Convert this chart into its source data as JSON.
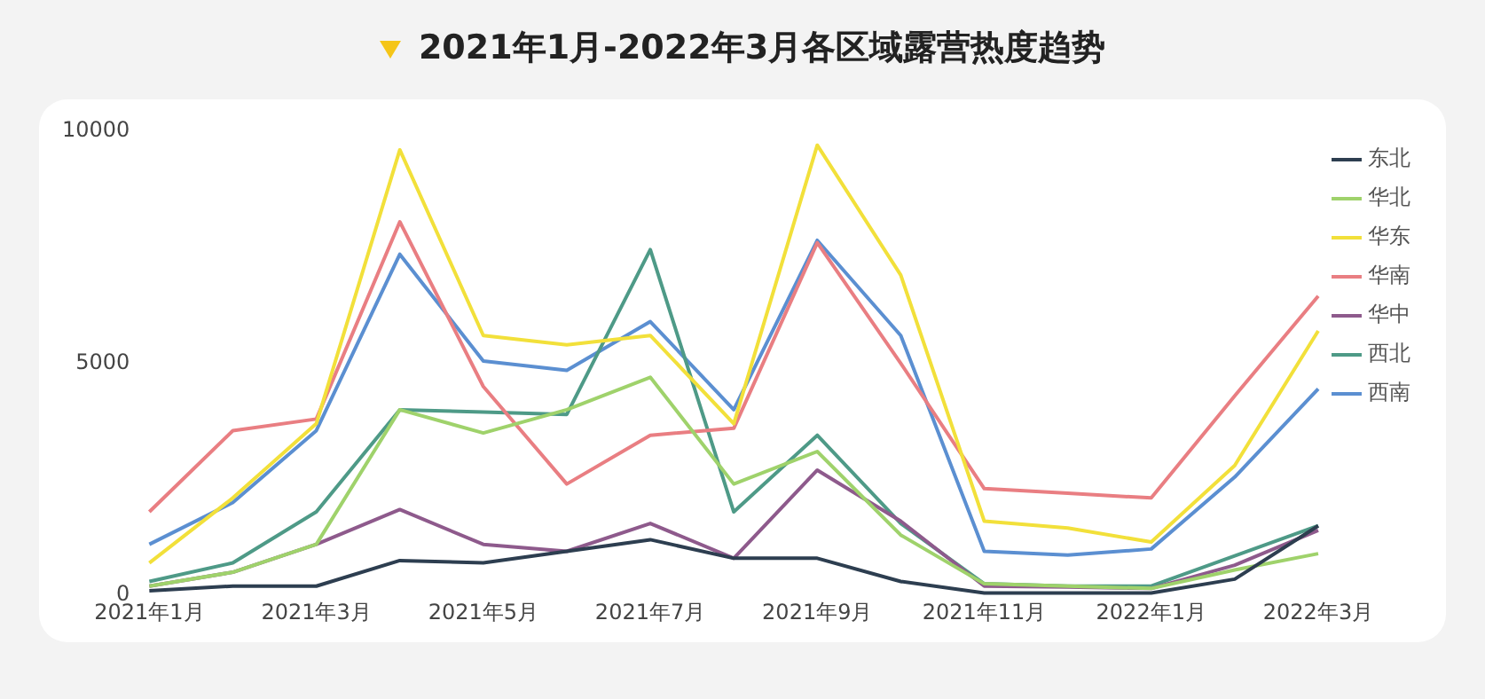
{
  "chart_data": {
    "type": "line",
    "title": "2021年1月-2022年3月各区域露营热度趋势",
    "categories": [
      "2021年1月",
      null,
      "2021年3月",
      null,
      "2021年5月",
      null,
      "2021年7月",
      null,
      "2021年9月",
      null,
      "2021年11月",
      null,
      "2022年1月",
      null,
      "2022年3月"
    ],
    "series": [
      {
        "name": "东北",
        "color": "#2d3e50",
        "values": [
          100,
          200,
          200,
          750,
          700,
          950,
          1200,
          800,
          800,
          300,
          50,
          50,
          50,
          350,
          1500
        ]
      },
      {
        "name": "华北",
        "color": "#9fd26b",
        "values": [
          200,
          500,
          1100,
          4000,
          3500,
          4000,
          4700,
          2400,
          3100,
          1300,
          250,
          200,
          150,
          550,
          900
        ]
      },
      {
        "name": "华东",
        "color": "#f2e03a",
        "values": [
          700,
          2100,
          3700,
          9600,
          5600,
          5400,
          5600,
          3700,
          9700,
          6900,
          1600,
          1450,
          1150,
          2800,
          5700
        ]
      },
      {
        "name": "华南",
        "color": "#e97e82",
        "values": [
          1800,
          3550,
          3800,
          8050,
          4500,
          2400,
          3450,
          3600,
          7600,
          5000,
          2300,
          2200,
          2100,
          4300,
          6450
        ]
      },
      {
        "name": "华中",
        "color": "#8e5a8c",
        "values": [
          200,
          500,
          1100,
          1850,
          1100,
          950,
          1550,
          800,
          2700,
          1600,
          200,
          180,
          150,
          650,
          1400
        ]
      },
      {
        "name": "西北",
        "color": "#4e9a87",
        "values": [
          300,
          700,
          1800,
          4000,
          3950,
          3900,
          7450,
          1800,
          3450,
          1550,
          250,
          200,
          200,
          850,
          1500
        ]
      },
      {
        "name": "西南",
        "color": "#5b8fd1",
        "values": [
          1100,
          2000,
          3550,
          7350,
          5050,
          4850,
          5900,
          4000,
          7650,
          5600,
          950,
          870,
          1000,
          2550,
          4450
        ]
      }
    ],
    "ylim": [
      0,
      10000
    ],
    "yticks": [
      0,
      5000,
      10000
    ],
    "grid": false,
    "legend": "top right",
    "marker": "none",
    "line_style": "solid"
  }
}
